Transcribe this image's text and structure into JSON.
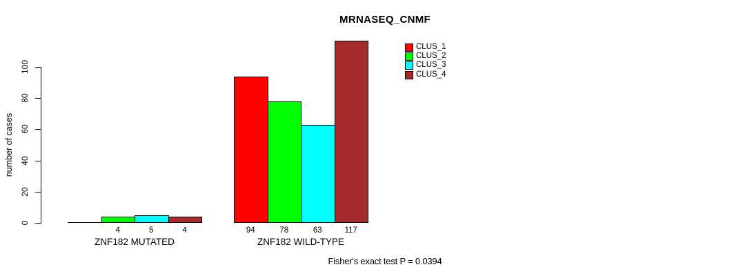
{
  "title": "MRNASEQ_CNMF",
  "footnote": "Fisher's exact test P = 0.0394",
  "colors": {
    "background": "#FFFFFF",
    "text": "#000000",
    "axis": "#000000",
    "clus_1": "#FF0000",
    "clus_2": "#00FF00",
    "clus_3": "#00FFFF",
    "clus_4": "#A52A2A"
  },
  "chart_data": {
    "type": "bar",
    "title": "MRNASEQ_CNMF",
    "xlabel": "",
    "ylabel": "number of cases",
    "ylim": [
      0,
      100
    ],
    "yticks": [
      0,
      20,
      40,
      60,
      80,
      100
    ],
    "grid": false,
    "legend_position": "top-right",
    "categories": [
      "ZNF182 MUTATED",
      "ZNF182 WILD-TYPE"
    ],
    "series": [
      {
        "name": "CLUS_1",
        "color": "#FF0000",
        "values": [
          0,
          94
        ]
      },
      {
        "name": "CLUS_2",
        "color": "#00FF00",
        "values": [
          4,
          78
        ]
      },
      {
        "name": "CLUS_3",
        "color": "#00FFFF",
        "values": [
          5,
          63
        ]
      },
      {
        "name": "CLUS_4",
        "color": "#A52A2A",
        "values": [
          4,
          117
        ]
      }
    ],
    "bar_value_labels_shown": true,
    "zero_value_labels_hidden": true,
    "annotation": "Fisher's exact test P = 0.0394"
  }
}
